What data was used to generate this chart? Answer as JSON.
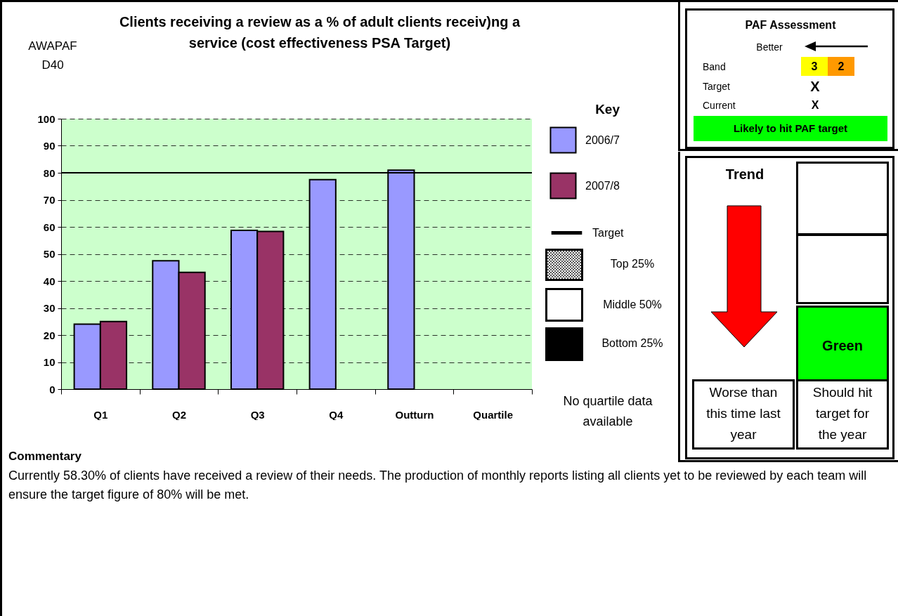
{
  "chart_data": {
    "type": "bar",
    "title": "Clients receiving a review as a % of adult clients receiv)ng a service (cost effectiveness PSA Target)",
    "categories": [
      "Q1",
      "Q2",
      "Q3",
      "Q4",
      "Outturn",
      "Quartile"
    ],
    "series": [
      {
        "name": "2006/7",
        "color": "#9999ff",
        "values": [
          24,
          47.5,
          58.7,
          77.5,
          81,
          null
        ]
      },
      {
        "name": "2007/8",
        "color": "#993366",
        "values": [
          25,
          43.2,
          58.3,
          null,
          null,
          null
        ]
      }
    ],
    "ylim": [
      0,
      100
    ],
    "yticks": [
      0,
      10,
      20,
      30,
      40,
      50,
      60,
      70,
      80,
      90,
      100
    ],
    "grid": "y",
    "legend": "right",
    "legend_title": "Key",
    "ref_lines": [
      {
        "axis": "y",
        "value": 80,
        "label": "Target",
        "color": "#000000"
      }
    ],
    "annotations": [
      "AWAPAF D40",
      "Top 25%",
      "Middle 50%",
      "Bottom 25%",
      "No quartile data available",
      "PAF Assessment",
      "Better",
      "Band",
      "3",
      "2",
      "Target",
      "X",
      "Current",
      "X",
      "Likely to hit PAF target",
      "Trend",
      "Green",
      "Worse than this time last year",
      "Should hit target for the year",
      "Commentary",
      "Currently 58.30% of clients have received a review of their needs.  The production of monthly reports listing all clients yet to be reviewed by each team will ensure the target figure of 80% will be met."
    ]
  }
}
